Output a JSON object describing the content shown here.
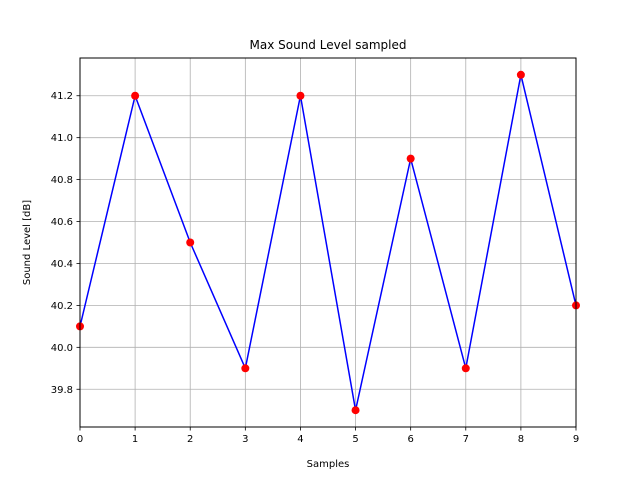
{
  "chart_data": {
    "type": "line",
    "title": "Max Sound Level sampled",
    "xlabel": "Samples",
    "ylabel": "Sound Level [dB]",
    "x": [
      0,
      1,
      2,
      3,
      4,
      5,
      6,
      7,
      8,
      9
    ],
    "series": [
      {
        "values": [
          40.1,
          41.2,
          40.5,
          39.9,
          41.2,
          39.7,
          40.9,
          39.9,
          41.3,
          40.2
        ],
        "line_color": "#0000ff",
        "marker_color": "#ff0000"
      }
    ],
    "xlim": [
      0,
      9
    ],
    "ylim": [
      39.62,
      41.38
    ],
    "xticks": [
      "0",
      "1",
      "2",
      "3",
      "4",
      "5",
      "6",
      "7",
      "8",
      "9"
    ],
    "yticks": [
      "39.8",
      "40.0",
      "40.2",
      "40.4",
      "40.6",
      "40.8",
      "41.0",
      "41.2"
    ],
    "grid": true,
    "grid_color": "#b0b0b0"
  }
}
